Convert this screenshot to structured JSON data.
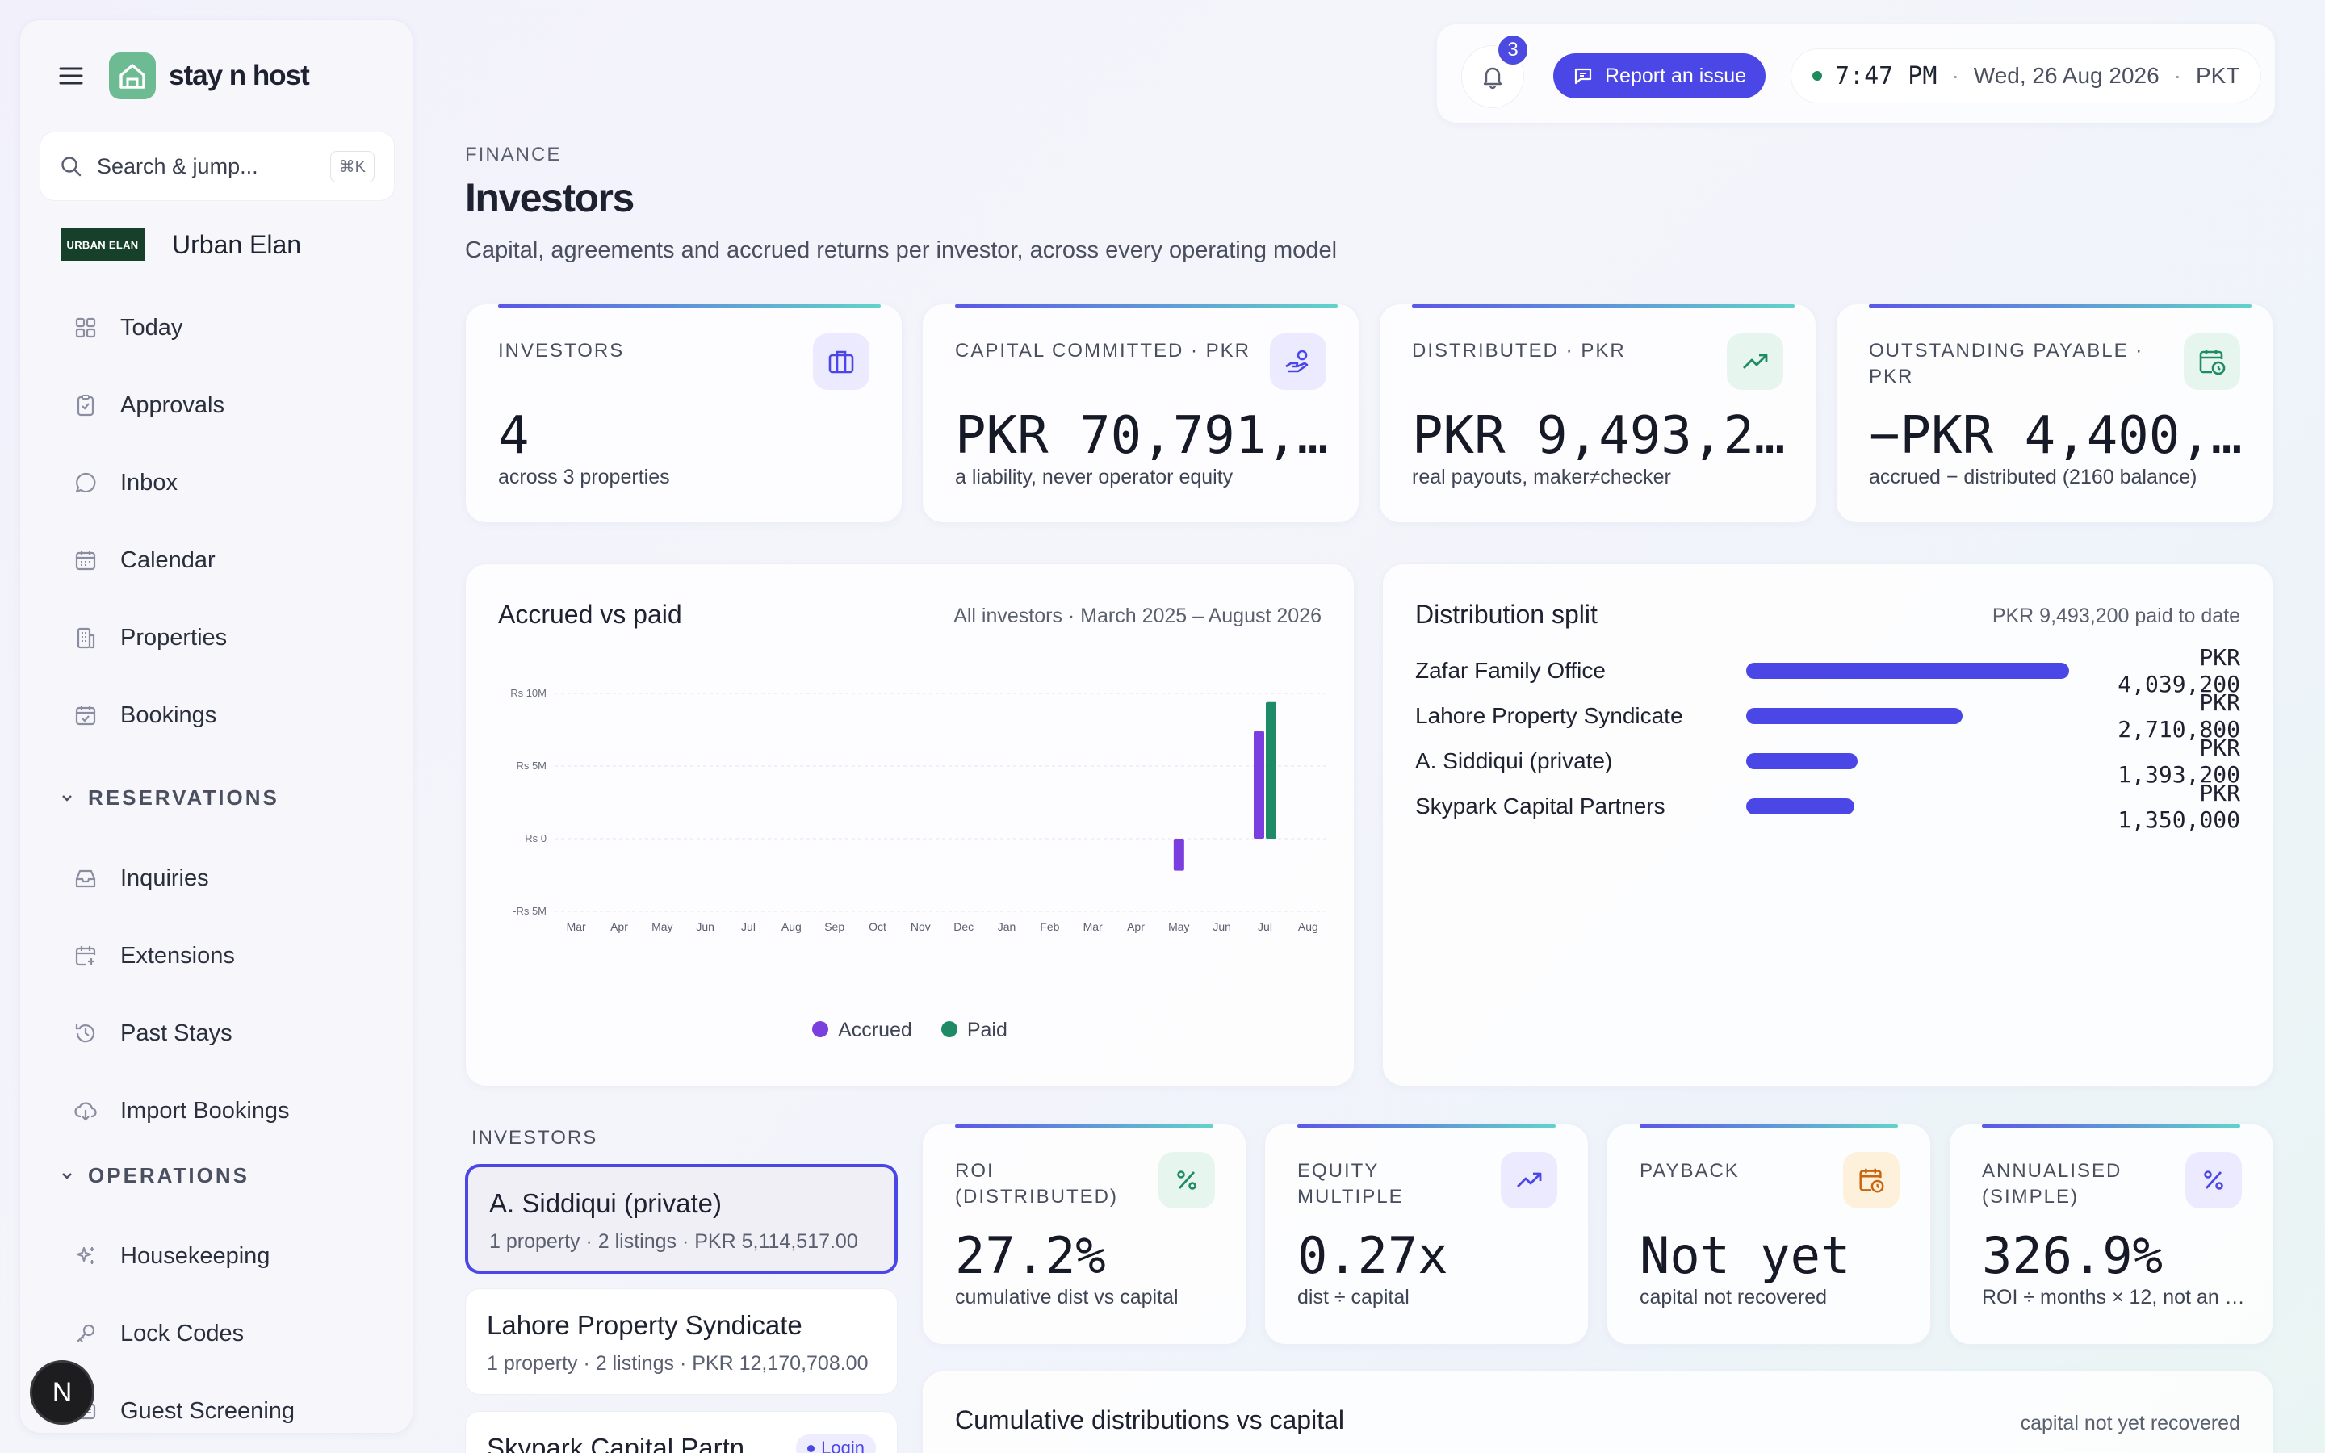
{
  "sidebar": {
    "brand": "stay n host",
    "search": {
      "placeholder": "Search & jump...",
      "shortcut": "⌘K"
    },
    "org": {
      "badge": "URBAN ELAN",
      "name": "Urban Elan"
    },
    "items": [
      {
        "label": "Today"
      },
      {
        "label": "Approvals"
      },
      {
        "label": "Inbox"
      },
      {
        "label": "Calendar"
      },
      {
        "label": "Properties"
      },
      {
        "label": "Bookings"
      }
    ],
    "sections": [
      {
        "label": "RESERVATIONS",
        "items": [
          {
            "label": "Inquiries"
          },
          {
            "label": "Extensions"
          },
          {
            "label": "Past Stays"
          },
          {
            "label": "Import Bookings"
          }
        ]
      },
      {
        "label": "OPERATIONS",
        "items": [
          {
            "label": "Housekeeping"
          },
          {
            "label": "Lock Codes"
          },
          {
            "label": "Guest Screening"
          }
        ]
      }
    ],
    "user_initial": "N"
  },
  "topbar": {
    "notification_count": "3",
    "report_label": "Report an issue",
    "time": "7:47 PM",
    "date": "Wed, 26 Aug 2026",
    "tz": "PKT",
    "status_color": "#1e8b5c"
  },
  "header": {
    "eyebrow": "FINANCE",
    "title": "Investors",
    "subtitle": "Capital, agreements and accrued returns per investor, across every operating model"
  },
  "stats": [
    {
      "label": "INVESTORS",
      "value": "4",
      "sub": "across 3 properties",
      "icon": "briefcase-icon"
    },
    {
      "label": "CAPITAL COMMITTED · PKR",
      "value": "PKR 70,791,7…",
      "sub": "a liability, never operator equity",
      "icon": "hand-coins-icon"
    },
    {
      "label": "DISTRIBUTED · PKR",
      "value": "PKR 9,493,200",
      "sub": "real payouts, maker≠checker",
      "icon": "trending-up-icon"
    },
    {
      "label": "OUTSTANDING PAYABLE · PKR",
      "value": "−PKR 4,400,5…",
      "sub": "accrued − distributed (2160 balance)",
      "icon": "calendar-clock-icon"
    }
  ],
  "accrued_chart": {
    "title": "Accrued vs paid",
    "note": "All investors · March 2025 – August 2026",
    "legend": [
      "Accrued",
      "Paid"
    ],
    "colors": {
      "accrued": "#7b3fe0",
      "paid": "#1f8a66"
    }
  },
  "chart_data": {
    "type": "bar",
    "title": "Accrued vs paid",
    "categories": [
      "Mar",
      "Apr",
      "May",
      "Jun",
      "Jul",
      "Aug",
      "Sep",
      "Oct",
      "Nov",
      "Dec",
      "Jan",
      "Feb",
      "Mar",
      "Apr",
      "May",
      "Jun",
      "Jul",
      "Aug"
    ],
    "series": [
      {
        "name": "Accrued",
        "values": [
          0,
          0,
          0,
          0,
          0,
          0,
          0,
          0,
          0,
          0,
          0,
          0,
          0,
          0,
          -2200000,
          0,
          7400000,
          0
        ]
      },
      {
        "name": "Paid",
        "values": [
          0,
          0,
          0,
          0,
          0,
          0,
          0,
          0,
          0,
          0,
          0,
          0,
          0,
          0,
          0,
          0,
          9400000,
          0
        ]
      }
    ],
    "yticks": [
      {
        "value": 10000000,
        "label": "Rs 10M"
      },
      {
        "value": 5000000,
        "label": "Rs 5M"
      },
      {
        "value": 0,
        "label": "Rs 0"
      },
      {
        "value": -5000000,
        "label": "-Rs 5M"
      }
    ],
    "ylim": [
      -5000000,
      10000000
    ],
    "grid": true,
    "legend_position": "bottom"
  },
  "distribution": {
    "title": "Distribution split",
    "note": "PKR 9,493,200 paid to date",
    "max": 4039200,
    "rows": [
      {
        "name": "Zafar Family Office",
        "value": 4039200,
        "label": "PKR 4,039,200"
      },
      {
        "name": "Lahore Property Syndicate",
        "value": 2710800,
        "label": "PKR 2,710,800"
      },
      {
        "name": "A. Siddiqui (private)",
        "value": 1393200,
        "label": "PKR 1,393,200"
      },
      {
        "name": "Skypark Capital Partners",
        "value": 1350000,
        "label": "PKR 1,350,000"
      }
    ]
  },
  "investors_list": {
    "label": "INVESTORS",
    "items": [
      {
        "name": "A. Siddiqui (private)",
        "meta": "1 property · 2 listings · PKR 5,114,517.00"
      },
      {
        "name": "Lahore Property Syndicate",
        "meta": "1 property · 2 listings · PKR 12,170,708.00"
      },
      {
        "name": "Skypark Capital Partn",
        "badge": "Login"
      }
    ]
  },
  "metrics": [
    {
      "label": "ROI (DISTRIBUTED)",
      "value": "27.2%",
      "sub": "cumulative dist vs capital",
      "icon": "percent-icon"
    },
    {
      "label": "EQUITY MULTIPLE",
      "value": "0.27x",
      "sub": "dist ÷ capital",
      "icon": "trending-up-icon"
    },
    {
      "label": "PAYBACK",
      "value": "Not yet",
      "sub": "capital not recovered",
      "icon": "calendar-clock-icon"
    },
    {
      "label": "ANNUALISED (SIMPLE)",
      "value": "326.9%",
      "sub": "ROI ÷ months × 12, not an …",
      "icon": "percent-icon"
    }
  ],
  "cumulative": {
    "title": "Cumulative distributions vs capital",
    "note": "capital not yet recovered"
  }
}
